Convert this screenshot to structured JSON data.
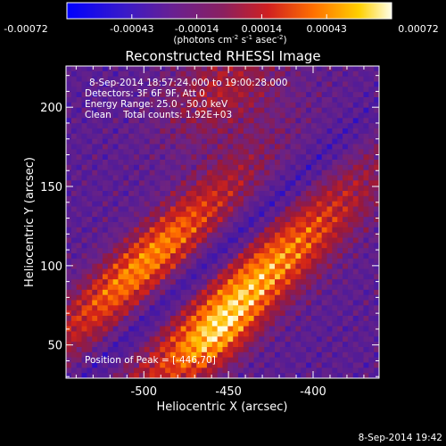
{
  "colorbar": {
    "ticks": [
      "-0.00072",
      "-0.00043",
      "-0.00014",
      "0.00014",
      "0.00043",
      "0.00072"
    ],
    "units_text": "(photons cm",
    "units_exp1": "-2",
    "units_mid": " s",
    "units_exp2": "-1",
    "units_end": " asec",
    "units_exp3": "-2",
    "units_close": ")"
  },
  "chart_data": {
    "type": "heatmap",
    "title": "Reconstructed RHESSI Image",
    "xlabel": "Heliocentric X (arcsec)",
    "ylabel": "Heliocentric Y (arcsec)",
    "xlim": [
      -546,
      -361
    ],
    "ylim": [
      29,
      226
    ],
    "x_ticks": [
      "-500",
      "-450",
      "-400"
    ],
    "x_tick_values": [
      -500,
      -450,
      -400
    ],
    "y_ticks": [
      "50",
      "100",
      "150",
      "200"
    ],
    "y_tick_values": [
      50,
      100,
      150,
      200
    ],
    "color_range": [
      -0.00072,
      0.00072
    ],
    "colormap": [
      "#0000ff",
      "#4b1a9e",
      "#7a2c8a",
      "#c0283a",
      "#ff5500",
      "#ffb000",
      "#ffffe0"
    ],
    "peak": {
      "x": -446,
      "y": 70
    },
    "annotations": [
      "8-Sep-2014 18:57:24.000 to 19:00:28.000",
      "Detectors: 3F 6F 9F, Att 0",
      "Energy Range: 25.0 - 50.0 keV",
      "Clean    Total counts: 1.92E+03"
    ],
    "peak_label": "Position of Peak = [-446,70]",
    "timestamp": "8-Sep-2014 19:42"
  }
}
